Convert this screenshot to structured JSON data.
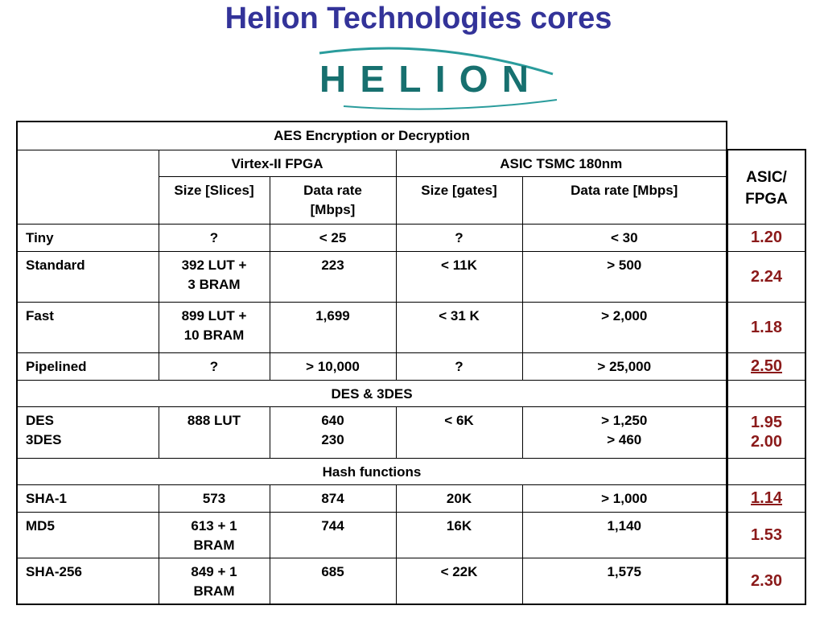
{
  "title": "Helion Technologies cores",
  "logo": "HELION",
  "table": {
    "group_headers": [
      "Virtex-II FPGA",
      "ASIC TSMC 180nm"
    ],
    "columns": [
      "Size [Slices]",
      "Data rate\n[Mbps]",
      "Size [gates]",
      "Data rate [Mbps]"
    ],
    "sections": [
      {
        "title": "AES Encryption or Decryption",
        "rows": [
          {
            "cells": [
              "Tiny",
              "?",
              "< 25",
              "?",
              "< 30"
            ],
            "ratio": "1.20"
          },
          {
            "cells": [
              "Standard",
              "392 LUT +\n3 BRAM",
              "223",
              "< 11K",
              "> 500"
            ],
            "ratio": "2.24"
          },
          {
            "cells": [
              "Fast",
              "899 LUT +\n10 BRAM",
              "1,699",
              "< 31 K",
              "> 2,000"
            ],
            "ratio": "1.18"
          },
          {
            "cells": [
              "Pipelined",
              "?",
              "> 10,000",
              "?",
              "> 25,000"
            ],
            "ratio": "2.50",
            "underlined": true
          }
        ]
      },
      {
        "title": "DES & 3DES",
        "rows": [
          {
            "cells": [
              "DES\n3DES",
              "888 LUT",
              "640\n230",
              "< 6K",
              "> 1,250\n> 460"
            ],
            "ratio": "1.95\n2.00"
          }
        ]
      },
      {
        "title": "Hash functions",
        "rows": [
          {
            "cells": [
              "SHA-1",
              "573",
              "874",
              "20K",
              "> 1,000"
            ],
            "ratio": "1.14",
            "underlined": true
          },
          {
            "cells": [
              "MD5",
              "613 + 1\nBRAM",
              "744",
              "16K",
              "1,140"
            ],
            "ratio": "1.53"
          },
          {
            "cells": [
              "SHA-256",
              "849 + 1\nBRAM",
              "685",
              "< 22K",
              "1,575"
            ],
            "ratio": "2.30"
          }
        ]
      }
    ]
  },
  "ratio_header": "ASIC/\nFPGA"
}
